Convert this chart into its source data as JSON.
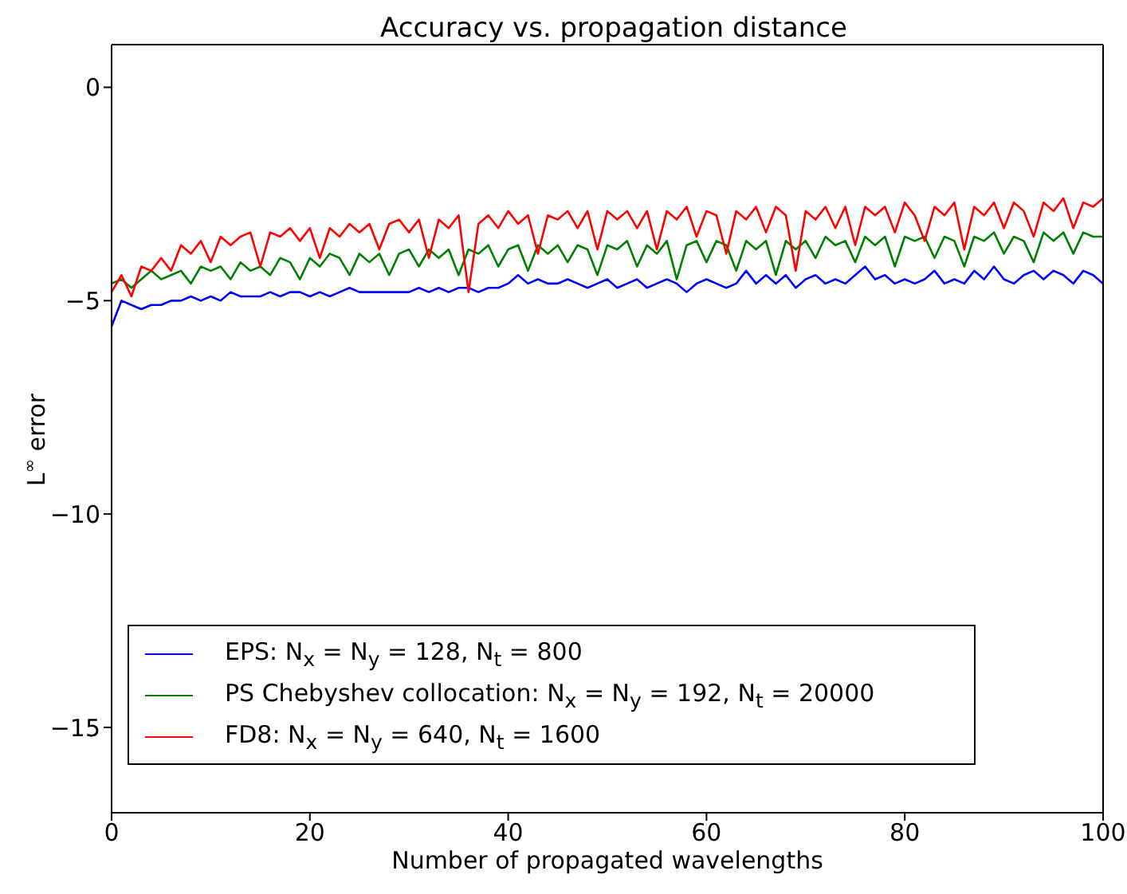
{
  "chart_data": {
    "type": "line",
    "title": "Accuracy vs. propagation distance",
    "xlabel": "Number of propagated wavelengths",
    "ylabel": "L$^{∞}$  error",
    "xlim": [
      0,
      100
    ],
    "xticks": [
      0,
      20,
      40,
      60,
      80,
      100
    ],
    "ylim": [
      -17,
      1
    ],
    "yticks": [
      -15,
      -10,
      -5,
      0
    ],
    "legend": "bottom left",
    "marker": "none",
    "line_style": "solid",
    "x": [
      0,
      1,
      2,
      3,
      4,
      5,
      6,
      7,
      8,
      9,
      10,
      11,
      12,
      13,
      14,
      15,
      16,
      17,
      18,
      19,
      20,
      21,
      22,
      23,
      24,
      25,
      26,
      27,
      28,
      29,
      30,
      31,
      32,
      33,
      34,
      35,
      36,
      37,
      38,
      39,
      40,
      41,
      42,
      43,
      44,
      45,
      46,
      47,
      48,
      49,
      50,
      51,
      52,
      53,
      54,
      55,
      56,
      57,
      58,
      59,
      60,
      61,
      62,
      63,
      64,
      65,
      66,
      67,
      68,
      69,
      70,
      71,
      72,
      73,
      74,
      75,
      76,
      77,
      78,
      79,
      80,
      81,
      82,
      83,
      84,
      85,
      86,
      87,
      88,
      89,
      90,
      91,
      92,
      93,
      94,
      95,
      96,
      97,
      98,
      99,
      100
    ],
    "series": [
      {
        "name": "EPS: N$_{x}$ = N$_{y}$ = 128, N$_{t}$ = 800",
        "color": "#0000ff",
        "values": [
          -5.6,
          -5.0,
          -5.1,
          -5.2,
          -5.1,
          -5.1,
          -5.0,
          -5.0,
          -4.9,
          -5.0,
          -4.9,
          -5.0,
          -4.8,
          -4.9,
          -4.9,
          -4.9,
          -4.8,
          -4.9,
          -4.8,
          -4.8,
          -4.9,
          -4.8,
          -4.9,
          -4.8,
          -4.7,
          -4.8,
          -4.8,
          -4.8,
          -4.8,
          -4.8,
          -4.8,
          -4.7,
          -4.8,
          -4.7,
          -4.8,
          -4.7,
          -4.7,
          -4.8,
          -4.7,
          -4.7,
          -4.6,
          -4.4,
          -4.6,
          -4.5,
          -4.6,
          -4.6,
          -4.5,
          -4.6,
          -4.7,
          -4.6,
          -4.5,
          -4.7,
          -4.6,
          -4.5,
          -4.7,
          -4.6,
          -4.5,
          -4.6,
          -4.8,
          -4.6,
          -4.5,
          -4.6,
          -4.7,
          -4.6,
          -4.3,
          -4.6,
          -4.4,
          -4.6,
          -4.4,
          -4.7,
          -4.5,
          -4.4,
          -4.6,
          -4.5,
          -4.6,
          -4.4,
          -4.2,
          -4.5,
          -4.4,
          -4.6,
          -4.5,
          -4.6,
          -4.5,
          -4.3,
          -4.6,
          -4.5,
          -4.6,
          -4.3,
          -4.5,
          -4.2,
          -4.5,
          -4.6,
          -4.4,
          -4.3,
          -4.5,
          -4.3,
          -4.4,
          -4.6,
          -4.3,
          -4.4,
          -4.6
        ]
      },
      {
        "name": "PS Chebyshev collocation: N$_{x}$ = N$_{y}$ = 192, N$_{t}$ = 20000",
        "color": "#008000",
        "values": [
          -4.6,
          -4.5,
          -4.7,
          -4.5,
          -4.3,
          -4.5,
          -4.4,
          -4.3,
          -4.6,
          -4.2,
          -4.3,
          -4.2,
          -4.5,
          -4.1,
          -4.3,
          -4.2,
          -4.4,
          -4.0,
          -4.1,
          -4.5,
          -4.0,
          -4.2,
          -3.9,
          -4.0,
          -4.4,
          -3.9,
          -4.1,
          -3.9,
          -4.4,
          -3.9,
          -3.8,
          -4.2,
          -3.8,
          -4.0,
          -3.8,
          -4.4,
          -3.8,
          -3.9,
          -3.7,
          -4.2,
          -3.8,
          -3.7,
          -4.3,
          -3.7,
          -3.9,
          -3.7,
          -4.1,
          -3.7,
          -3.8,
          -4.4,
          -3.7,
          -3.8,
          -3.6,
          -4.2,
          -3.7,
          -3.9,
          -3.6,
          -4.5,
          -3.7,
          -3.6,
          -4.1,
          -3.6,
          -3.7,
          -4.3,
          -3.6,
          -3.8,
          -3.6,
          -4.4,
          -3.6,
          -3.8,
          -3.6,
          -4.0,
          -3.5,
          -3.7,
          -3.6,
          -4.1,
          -3.5,
          -3.7,
          -3.5,
          -4.2,
          -3.5,
          -3.6,
          -3.5,
          -4.0,
          -3.5,
          -3.6,
          -4.2,
          -3.5,
          -3.6,
          -3.4,
          -3.9,
          -3.5,
          -3.6,
          -4.1,
          -3.4,
          -3.6,
          -3.4,
          -3.9,
          -3.4,
          -3.5,
          -3.5
        ]
      },
      {
        "name": "FD8: N$_{x}$ = N$_{y}$ = 640, N$_{t}$ = 1600",
        "color": "#ff0000",
        "values": [
          -4.8,
          -4.4,
          -4.9,
          -4.2,
          -4.3,
          -4.0,
          -4.3,
          -3.7,
          -3.9,
          -3.6,
          -4.1,
          -3.5,
          -3.7,
          -3.5,
          -3.4,
          -4.2,
          -3.4,
          -3.5,
          -3.3,
          -3.6,
          -3.3,
          -4.0,
          -3.3,
          -3.5,
          -3.2,
          -3.4,
          -3.2,
          -3.8,
          -3.2,
          -3.1,
          -3.4,
          -3.1,
          -4.0,
          -3.1,
          -3.3,
          -3.0,
          -4.8,
          -3.2,
          -3.0,
          -3.3,
          -2.9,
          -3.2,
          -3.0,
          -3.9,
          -3.0,
          -3.1,
          -2.9,
          -3.3,
          -2.9,
          -3.8,
          -2.9,
          -3.1,
          -2.9,
          -3.3,
          -2.9,
          -3.8,
          -2.9,
          -3.1,
          -2.8,
          -3.5,
          -2.9,
          -3.0,
          -3.9,
          -2.9,
          -3.1,
          -2.8,
          -3.4,
          -2.8,
          -3.0,
          -4.3,
          -2.9,
          -3.1,
          -2.8,
          -3.3,
          -2.8,
          -3.7,
          -2.8,
          -3.0,
          -2.8,
          -3.4,
          -2.7,
          -3.0,
          -3.6,
          -2.8,
          -3.0,
          -2.7,
          -3.8,
          -2.8,
          -3.0,
          -2.7,
          -3.3,
          -2.7,
          -2.9,
          -3.5,
          -2.7,
          -2.9,
          -2.6,
          -3.3,
          -2.7,
          -2.8,
          -2.6
        ]
      }
    ]
  }
}
